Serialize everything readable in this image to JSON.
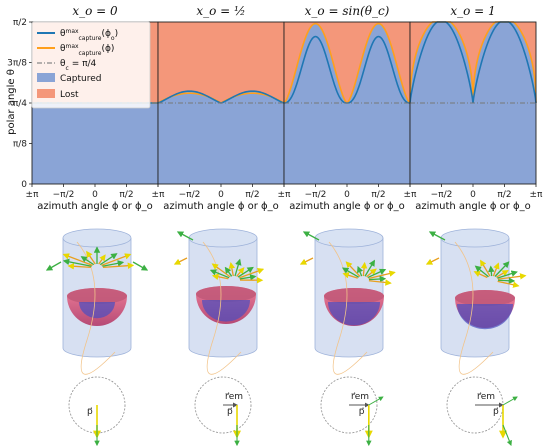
{
  "chart_data": {
    "type": "area",
    "ylabel": "polar angle θ",
    "xlabel": "azimuth angle ϕ or ϕ_o",
    "xlim": [
      -3.1416,
      3.1416
    ],
    "ylim": [
      0,
      1.5708
    ],
    "x_tick_labels": [
      "±π",
      "−π/2",
      "0",
      "π/2",
      "±π"
    ],
    "y_tick_labels": [
      "0",
      "π/8",
      "π/4",
      "3π/8",
      "π/2"
    ],
    "y_tick_values": [
      0,
      0.3927,
      0.7854,
      1.1781,
      1.5708
    ],
    "theta_c": 0.7854,
    "legend": {
      "position": "upper-left",
      "entries": [
        {
          "label": "θmax capture(ϕo)",
          "color": "#1f77b4",
          "kind": "line"
        },
        {
          "label": "θmax capture(ϕ)",
          "color": "#ff9f1c",
          "kind": "line"
        },
        {
          "label": "θc = π/4",
          "color": "#888888",
          "kind": "dashdot"
        },
        {
          "label": "Captured",
          "color": "#8aa4d6",
          "kind": "patch"
        },
        {
          "label": "Lost",
          "color": "#f4977a",
          "kind": "patch"
        }
      ]
    },
    "panels": [
      {
        "title": "xo = 0",
        "xo": 0
      },
      {
        "title": "xo = 1/2",
        "xo": 0.5
      },
      {
        "title": "xo = sin(θc)",
        "xo": 0.7071
      },
      {
        "title": "xo = 1",
        "xo": 1
      }
    ]
  },
  "panel_titles": [
    "x_o = 0",
    "x_o = ½",
    "x_o = sin(θ_c)",
    "x_o = 1"
  ],
  "vector_labels": {
    "r_em": "r⃗em",
    "p": "p⃗"
  },
  "colors": {
    "captured": "#8aa4d6",
    "lost": "#f4977a",
    "curve_o": "#1f77b4",
    "curve_phi": "#ff9f1c",
    "cylinder": "#c9d6ee",
    "hemisphere": "#e0607a",
    "arrow_green": "#3cb043",
    "arrow_yellow": "#f0e000"
  }
}
